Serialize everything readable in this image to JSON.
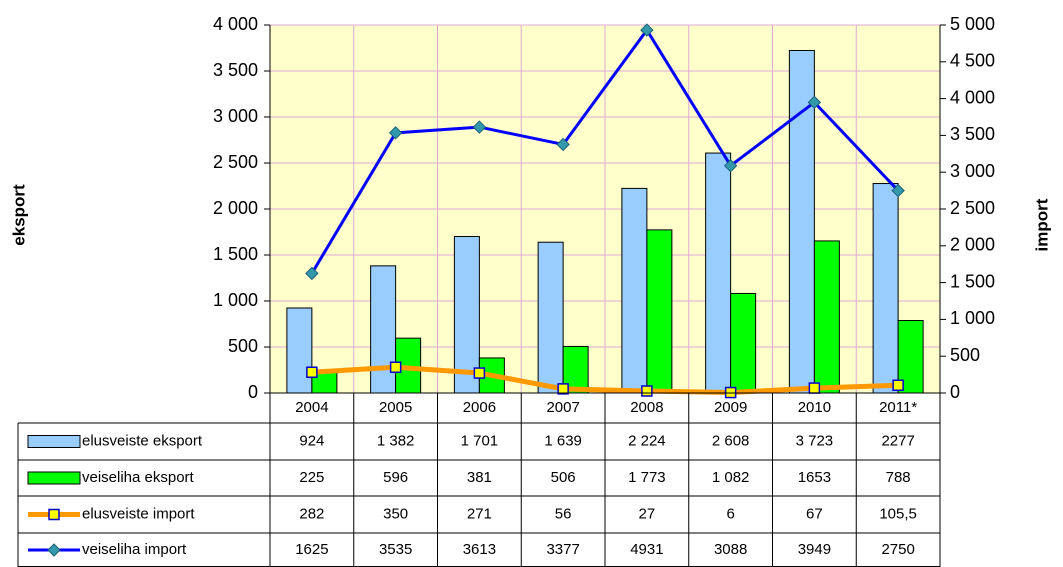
{
  "chart_data": {
    "type": "bar",
    "ylabel": "eksport",
    "y2label": "import",
    "categories": [
      "2004",
      "2005",
      "2006",
      "2007",
      "2008",
      "2009",
      "2010",
      "2011*"
    ],
    "ylim": [
      0,
      4000
    ],
    "yticks": [
      0,
      500,
      {
        "value": 1000,
        "label": "1 000"
      },
      {
        "value": 1500,
        "label": "1 500"
      },
      {
        "value": 2000,
        "label": "2 000"
      },
      {
        "value": 2500,
        "label": "2 500"
      },
      {
        "value": 3000,
        "label": "3 000"
      },
      {
        "value": 3500,
        "label": "3 500"
      },
      {
        "value": 4000,
        "label": "4 000"
      }
    ],
    "y2lim": [
      0,
      5000
    ],
    "y2ticks": [
      0,
      500,
      {
        "value": 1000,
        "label": "1 000"
      },
      {
        "value": 1500,
        "label": "1 500"
      },
      {
        "value": 2000,
        "label": "2 000"
      },
      {
        "value": 2500,
        "label": "2 500"
      },
      {
        "value": 3000,
        "label": "3 000"
      },
      {
        "value": 3500,
        "label": "3 500"
      },
      {
        "value": 4000,
        "label": "4 000"
      },
      {
        "value": 4500,
        "label": "4 500"
      },
      {
        "value": 5000,
        "label": "5 000"
      }
    ],
    "grid": true,
    "series": [
      {
        "name": "elusveiste eksport",
        "type": "bar",
        "color": "#99ccff",
        "values": [
          924,
          1382,
          1701,
          1639,
          2224,
          2608,
          3723,
          2277
        ],
        "value_labels": [
          "924",
          "1 382",
          "1 701",
          "1 639",
          "2 224",
          "2 608",
          "3 723",
          "2277"
        ]
      },
      {
        "name": "veiseliha eksport",
        "type": "bar",
        "color": "#00ff00",
        "values": [
          225,
          596,
          381,
          506,
          1773,
          1082,
          1653,
          788
        ],
        "value_labels": [
          "225",
          "596",
          "381",
          "506",
          "1 773",
          "1 082",
          "1653",
          "788"
        ]
      },
      {
        "name": "elusveiste import",
        "type": "line",
        "axis": "y2",
        "color": "#ff9900",
        "values": [
          282,
          350,
          271,
          56,
          27,
          6,
          67,
          105.5
        ],
        "value_labels": [
          "282",
          "350",
          "271",
          "56",
          "27",
          "6",
          "67",
          "105,5"
        ]
      },
      {
        "name": "veiseliha import",
        "type": "line",
        "axis": "y2",
        "color": "#0000ff",
        "values": [
          1625,
          3535,
          3613,
          3377,
          4931,
          3088,
          3949,
          2750
        ],
        "value_labels": [
          "1625",
          "3535",
          "3613",
          "3377",
          "4931",
          "3088",
          "3949",
          "2750"
        ]
      }
    ]
  }
}
